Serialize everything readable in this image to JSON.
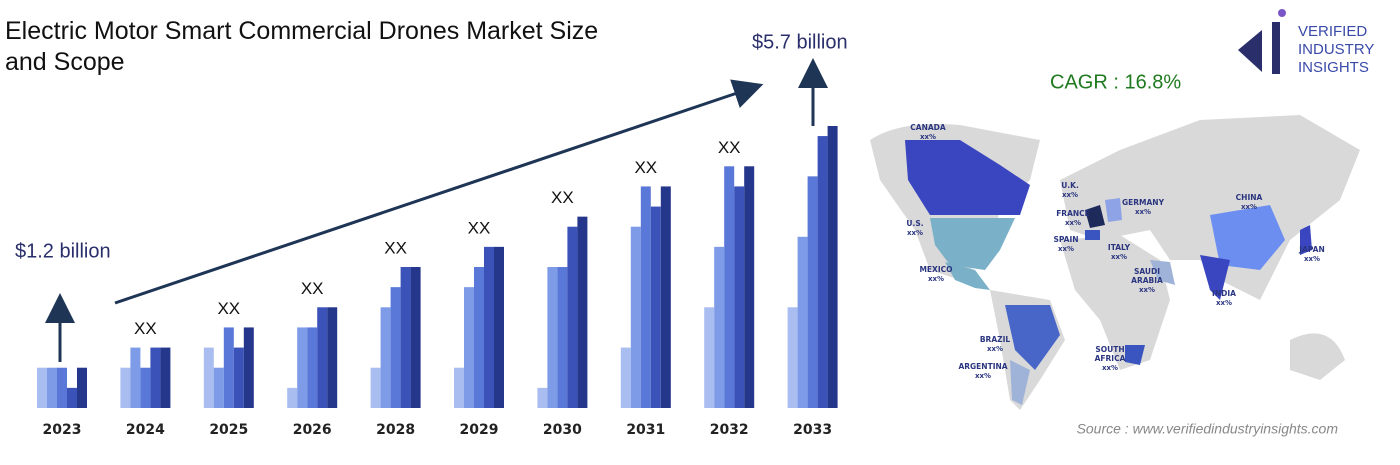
{
  "chart_data": {
    "type": "bar",
    "title": "Electric Motor Smart Commercial Drones Market Size and Scope",
    "start_label": "$1.2 billion",
    "end_label": "$5.7 billion",
    "cagr": "CAGR : 16.8%",
    "categories": [
      "2023",
      "2024",
      "2025",
      "2026",
      "2028",
      "2029",
      "2030",
      "2031",
      "2032",
      "2033"
    ],
    "group_labels": [
      null,
      "XX",
      "XX",
      "XX",
      "XX",
      "XX",
      "XX",
      "XX",
      "XX",
      null
    ],
    "series": [
      {
        "color": "#a9bdf0",
        "values": [
          2,
          2,
          3,
          1,
          2,
          2,
          1,
          3,
          5,
          5
        ]
      },
      {
        "color": "#7d9be6",
        "values": [
          2,
          3,
          2,
          4,
          5,
          6,
          7,
          9,
          8,
          8.5
        ]
      },
      {
        "color": "#5a78d8",
        "values": [
          2,
          2,
          4,
          4,
          6,
          7,
          7,
          11,
          12,
          11.5
        ]
      },
      {
        "color": "#3b53b8",
        "values": [
          1,
          3,
          3,
          5,
          7,
          8,
          9,
          10,
          11,
          13.5
        ]
      },
      {
        "color": "#25378a",
        "values": [
          2,
          3,
          4,
          5,
          7,
          8,
          9.5,
          11,
          12,
          14
        ]
      }
    ]
  },
  "logo": [
    "VERIFIED",
    "INDUSTRY",
    "INSIGHTS"
  ],
  "source": "Source : www.verifiedindustryinsights.com",
  "map": {
    "regions": [
      {
        "name": "CANADA",
        "value": "xx%"
      },
      {
        "name": "U.S.",
        "value": "xx%"
      },
      {
        "name": "MEXICO",
        "value": "xx%"
      },
      {
        "name": "BRAZIL",
        "value": "xx%"
      },
      {
        "name": "ARGENTINA",
        "value": "xx%"
      },
      {
        "name": "U.K.",
        "value": "xx%"
      },
      {
        "name": "FRANCE",
        "value": "xx%"
      },
      {
        "name": "SPAIN",
        "value": "xx%"
      },
      {
        "name": "GERMANY",
        "value": "xx%"
      },
      {
        "name": "ITALY",
        "value": "xx%"
      },
      {
        "name": "SAUDI ARABIA",
        "value": "xx%"
      },
      {
        "name": "SOUTH AFRICA",
        "value": "xx%"
      },
      {
        "name": "CHINA",
        "value": "xx%"
      },
      {
        "name": "INDIA",
        "value": "xx%"
      },
      {
        "name": "JAPAN",
        "value": "xx%"
      }
    ]
  }
}
